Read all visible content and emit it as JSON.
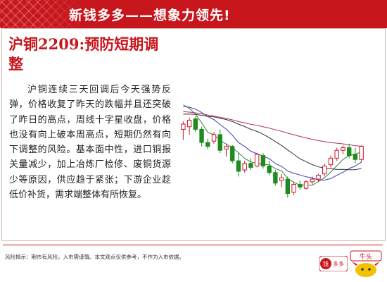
{
  "header": {
    "title": "新钱多多——想象力领先!"
  },
  "article": {
    "title": "沪铜2209:预防短期调整",
    "paragraph": "沪铜连续三天回调后今天强势反弹，价格收复了昨天的跌幅并且还突破了昨日的高点，周线十字星收盘，价格也没有向上破本周高点，短期仍然有向下调整的风险。基本面中性，进口铜报关量减少，加上冶炼厂检修、废铜货源少等原因，供应趋于紧张；下游企业趁低价补货，需求端整体有所恢复。"
  },
  "footer": {
    "disclaimer": "风险揭示：期市有风险，入市需谨慎。本文观点仅供参考，不作为入市依据。",
    "logo1_text": "钱多多",
    "logo2_text": "牛头"
  },
  "colors": {
    "brand": "#c8161d",
    "candle_up": "#d0142a",
    "candle_down": "#1f8a1f"
  },
  "chart_data": {
    "type": "candlestick",
    "candles": [
      {
        "o": 70,
        "h": 76,
        "l": 62,
        "c": 74
      },
      {
        "o": 72,
        "h": 79,
        "l": 66,
        "c": 77
      },
      {
        "o": 78,
        "h": 80,
        "l": 68,
        "c": 70
      },
      {
        "o": 70,
        "h": 72,
        "l": 57,
        "c": 60
      },
      {
        "o": 60,
        "h": 63,
        "l": 55,
        "c": 57
      },
      {
        "o": 61,
        "h": 68,
        "l": 59,
        "c": 66
      },
      {
        "o": 66,
        "h": 70,
        "l": 52,
        "c": 54
      },
      {
        "o": 55,
        "h": 59,
        "l": 49,
        "c": 57
      },
      {
        "o": 57,
        "h": 58,
        "l": 44,
        "c": 46
      },
      {
        "o": 46,
        "h": 52,
        "l": 34,
        "c": 38
      },
      {
        "o": 39,
        "h": 46,
        "l": 37,
        "c": 44
      },
      {
        "o": 44,
        "h": 48,
        "l": 39,
        "c": 41
      },
      {
        "o": 42,
        "h": 52,
        "l": 41,
        "c": 51
      },
      {
        "o": 50,
        "h": 52,
        "l": 40,
        "c": 42
      },
      {
        "o": 42,
        "h": 46,
        "l": 35,
        "c": 37
      },
      {
        "o": 37,
        "h": 39,
        "l": 27,
        "c": 29
      },
      {
        "o": 31,
        "h": 36,
        "l": 26,
        "c": 33
      },
      {
        "o": 32,
        "h": 34,
        "l": 18,
        "c": 21
      },
      {
        "o": 22,
        "h": 30,
        "l": 20,
        "c": 28
      },
      {
        "o": 28,
        "h": 31,
        "l": 24,
        "c": 26
      },
      {
        "o": 25,
        "h": 31,
        "l": 24,
        "c": 30
      },
      {
        "o": 30,
        "h": 34,
        "l": 28,
        "c": 32
      },
      {
        "o": 32,
        "h": 36,
        "l": 30,
        "c": 35
      },
      {
        "o": 36,
        "h": 44,
        "l": 34,
        "c": 42
      },
      {
        "o": 43,
        "h": 50,
        "l": 41,
        "c": 48
      },
      {
        "o": 48,
        "h": 56,
        "l": 46,
        "c": 54
      },
      {
        "o": 54,
        "h": 58,
        "l": 51,
        "c": 56
      },
      {
        "o": 56,
        "h": 59,
        "l": 48,
        "c": 50
      },
      {
        "o": 51,
        "h": 56,
        "l": 44,
        "c": 47
      },
      {
        "o": 47,
        "h": 58,
        "l": 45,
        "c": 57
      }
    ]
  }
}
